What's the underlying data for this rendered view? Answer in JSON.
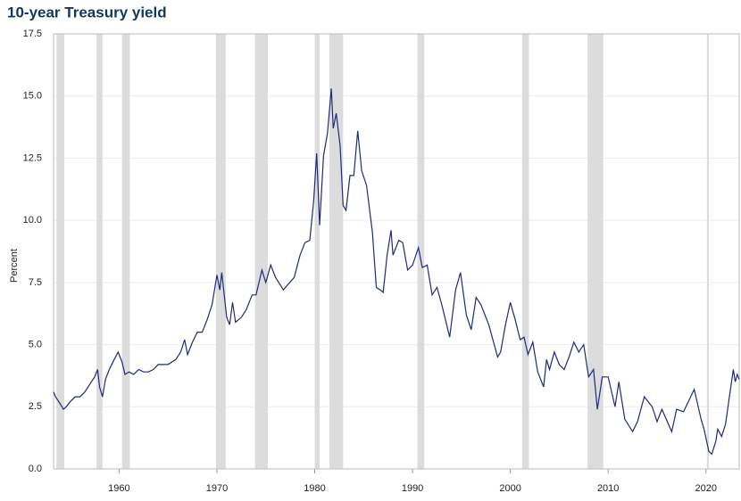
{
  "chart_data": {
    "type": "line",
    "title": "10-year Treasury yield",
    "y_label": "Percent",
    "x": [
      1953.3,
      1953.5,
      1954.0,
      1954.3,
      1954.6,
      1955.0,
      1955.5,
      1956.0,
      1956.5,
      1957.0,
      1957.5,
      1957.8,
      1958.0,
      1958.3,
      1958.6,
      1959.0,
      1959.5,
      1959.9,
      1960.3,
      1960.6,
      1961.0,
      1961.5,
      1962.0,
      1962.5,
      1963.0,
      1963.5,
      1964.0,
      1965.0,
      1965.8,
      1966.3,
      1966.7,
      1967.0,
      1967.5,
      1968.0,
      1968.5,
      1969.0,
      1969.5,
      1970.0,
      1970.3,
      1970.5,
      1971.0,
      1971.3,
      1971.6,
      1971.9,
      1972.5,
      1973.0,
      1973.6,
      1974.0,
      1974.6,
      1975.0,
      1975.5,
      1976.0,
      1976.8,
      1977.0,
      1977.9,
      1978.5,
      1979.0,
      1979.5,
      1979.9,
      1980.2,
      1980.5,
      1980.9,
      1981.3,
      1981.7,
      1981.9,
      1982.2,
      1982.6,
      1982.9,
      1983.2,
      1983.6,
      1984.0,
      1984.4,
      1984.8,
      1985.3,
      1985.9,
      1986.3,
      1986.7,
      1987.0,
      1987.4,
      1987.8,
      1988.0,
      1988.6,
      1989.0,
      1989.5,
      1990.0,
      1990.6,
      1991.0,
      1991.5,
      1992.0,
      1992.5,
      1993.0,
      1993.8,
      1994.4,
      1994.9,
      1995.5,
      1996.0,
      1996.5,
      1997.0,
      1997.8,
      1998.7,
      1999.0,
      1999.5,
      2000.0,
      2000.5,
      2001.0,
      2001.4,
      2001.8,
      2002.3,
      2002.8,
      2003.4,
      2003.7,
      2004.0,
      2004.5,
      2005.0,
      2005.5,
      2006.0,
      2006.5,
      2007.0,
      2007.5,
      2008.0,
      2008.5,
      2008.9,
      2009.4,
      2010.0,
      2010.7,
      2011.1,
      2011.7,
      2012.5,
      2013.0,
      2013.7,
      2014.5,
      2015.0,
      2015.5,
      2016.5,
      2017.0,
      2017.7,
      2018.8,
      2019.5,
      2019.8,
      2020.3,
      2020.6,
      2021.0,
      2021.2,
      2021.6,
      2022.0,
      2022.4,
      2022.8,
      2023.0,
      2023.2,
      2023.4
    ],
    "series": [
      {
        "name": "10-year Treasury yield",
        "color": "#1f2a7a",
        "values": [
          3.1,
          2.9,
          2.6,
          2.4,
          2.5,
          2.7,
          2.9,
          2.9,
          3.1,
          3.4,
          3.7,
          4.0,
          3.3,
          2.9,
          3.6,
          4.0,
          4.4,
          4.7,
          4.3,
          3.8,
          3.9,
          3.8,
          4.0,
          3.9,
          3.9,
          4.0,
          4.2,
          4.2,
          4.4,
          4.7,
          5.2,
          4.6,
          5.1,
          5.5,
          5.5,
          6.0,
          6.6,
          7.8,
          7.2,
          7.9,
          6.1,
          5.8,
          6.7,
          5.9,
          6.1,
          6.4,
          7.0,
          7.0,
          8.0,
          7.5,
          8.2,
          7.7,
          7.2,
          7.3,
          7.7,
          8.6,
          9.1,
          9.2,
          10.8,
          12.7,
          9.8,
          12.6,
          13.5,
          15.3,
          13.7,
          14.3,
          13.0,
          10.6,
          10.4,
          11.8,
          11.8,
          13.6,
          12.0,
          11.4,
          9.5,
          7.3,
          7.2,
          7.1,
          8.6,
          9.6,
          8.6,
          9.2,
          9.1,
          8.0,
          8.2,
          8.9,
          8.1,
          8.2,
          7.0,
          7.3,
          6.6,
          5.3,
          7.2,
          7.9,
          6.2,
          5.6,
          6.9,
          6.6,
          5.8,
          4.5,
          4.7,
          5.8,
          6.7,
          6.0,
          5.2,
          5.3,
          4.6,
          5.1,
          3.9,
          3.3,
          4.4,
          4.0,
          4.7,
          4.2,
          4.0,
          4.5,
          5.1,
          4.7,
          5.0,
          3.7,
          4.0,
          2.4,
          3.7,
          3.7,
          2.5,
          3.5,
          2.0,
          1.5,
          1.9,
          2.9,
          2.5,
          1.9,
          2.4,
          1.5,
          2.4,
          2.3,
          3.2,
          2.0,
          1.6,
          0.7,
          0.6,
          1.1,
          1.6,
          1.3,
          1.8,
          2.9,
          4.0,
          3.5,
          3.8,
          3.6
        ]
      }
    ],
    "recessions": [
      {
        "start": 1953.6,
        "end": 1954.4
      },
      {
        "start": 1957.7,
        "end": 1958.3
      },
      {
        "start": 1960.3,
        "end": 1961.1
      },
      {
        "start": 1969.9,
        "end": 1970.9
      },
      {
        "start": 1973.9,
        "end": 1975.2
      },
      {
        "start": 1980.0,
        "end": 1980.5
      },
      {
        "start": 1981.5,
        "end": 1982.9
      },
      {
        "start": 1990.5,
        "end": 1991.2
      },
      {
        "start": 2001.2,
        "end": 2001.9
      },
      {
        "start": 2007.9,
        "end": 2009.5
      },
      {
        "start": 2020.1,
        "end": 2020.3
      }
    ],
    "recession_color": "#dcdcdc",
    "xlim": [
      1953.3,
      2023.4
    ],
    "xticks": [
      1960,
      1970,
      1980,
      1990,
      2000,
      2010,
      2020
    ],
    "ylim": [
      0,
      17.5
    ],
    "yticks": [
      {
        "value": 0,
        "label": "0.0"
      },
      2.5,
      {
        "value": 5,
        "label": "5.0"
      },
      7.5,
      {
        "value": 10,
        "label": "10.0"
      },
      12.5,
      {
        "value": 15,
        "label": "15.0"
      },
      17.5
    ],
    "grid": true
  }
}
